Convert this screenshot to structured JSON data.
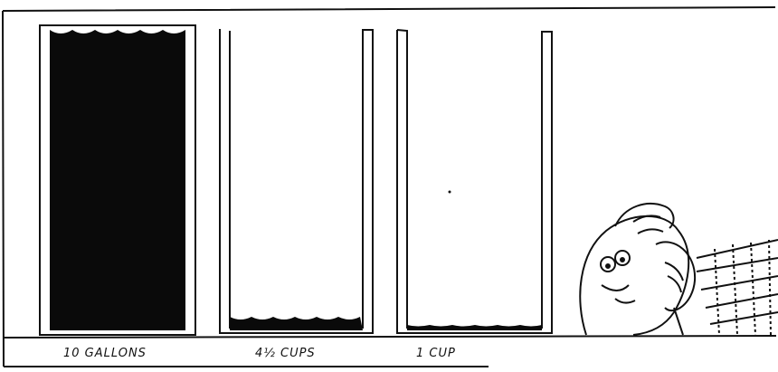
{
  "containers": [
    {
      "label": "10 GALLONS"
    },
    {
      "label": "4½ CUPS"
    },
    {
      "label": "1 CUP"
    }
  ]
}
